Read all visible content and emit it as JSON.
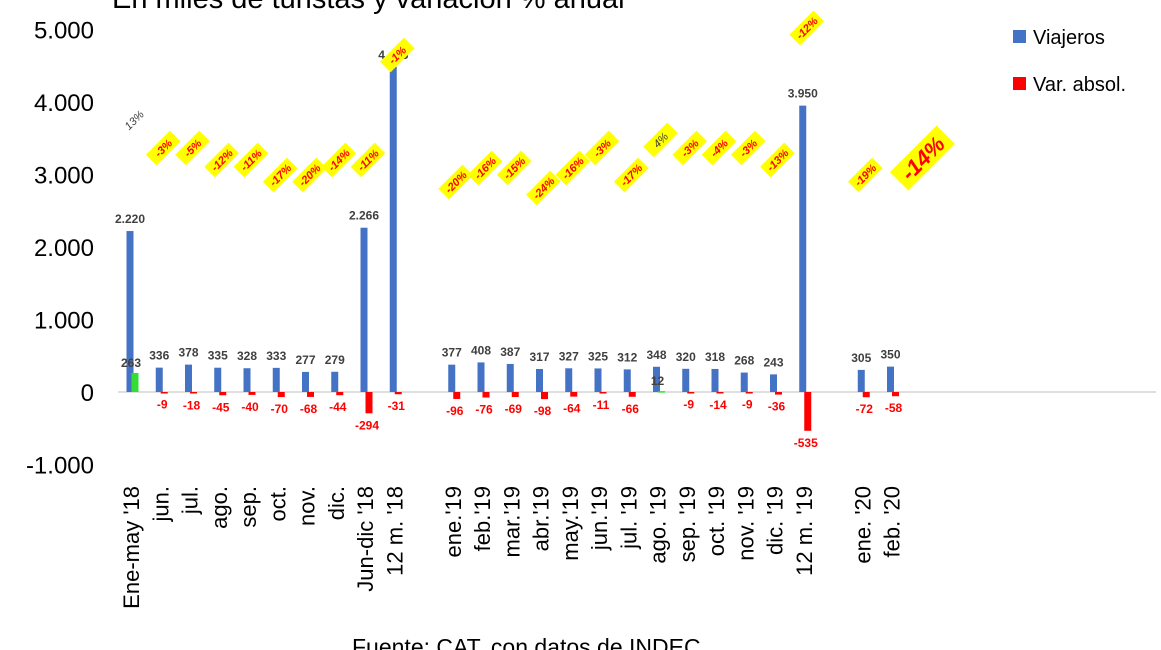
{
  "chart_data": {
    "type": "bar",
    "title": "En miles de turistas y variación % anual",
    "source": "Fuente: CAT, con datos de INDEC",
    "ylim": [
      -1000,
      5000
    ],
    "yticks": [
      "-1.000",
      "0",
      "1.000",
      "2.000",
      "3.000",
      "4.000",
      "5.000"
    ],
    "categories": [
      "Ene-may '18",
      "jun.",
      "jul.",
      "ago.",
      "sep.",
      "oct.",
      "nov.",
      "dic.",
      "Jun-dic '18",
      "12 m. '18",
      "",
      "ene.'19",
      "feb.'19",
      "mar.'19",
      "abr.'19",
      "may.'19",
      "jun.'19",
      "jul. '19",
      "ago. '19",
      "sep. '19",
      "oct. '19",
      "nov. '19",
      "dic. '19",
      "12 m. '19",
      "",
      "ene. '20",
      "feb. '20"
    ],
    "series": [
      {
        "name": "Viajeros",
        "color": "#4472C4",
        "values": [
          2220,
          336,
          378,
          335,
          328,
          333,
          277,
          279,
          2266,
          4485,
          null,
          377,
          408,
          387,
          317,
          327,
          325,
          312,
          348,
          320,
          318,
          268,
          243,
          3950,
          null,
          305,
          350
        ],
        "labels": [
          "2.220",
          "336",
          "378",
          "335",
          "328",
          "333",
          "277",
          "279",
          "2.266",
          "4.485",
          "",
          "377",
          "408",
          "387",
          "317",
          "327",
          "325",
          "312",
          "348",
          "320",
          "318",
          "268",
          "243",
          "3.950",
          "",
          "305",
          "350"
        ]
      },
      {
        "name": "Var. absol.",
        "color": "#FF0000",
        "positive_color": "#33DD33",
        "values": [
          263,
          -9,
          -18,
          -45,
          -40,
          -70,
          -68,
          -44,
          -294,
          -31,
          null,
          -96,
          -76,
          -69,
          -98,
          -64,
          -11,
          -66,
          12,
          -9,
          -14,
          -9,
          -36,
          -535,
          null,
          -72,
          -58
        ],
        "labels": [
          "263",
          "-9",
          "-18",
          "-45",
          "-40",
          "-70",
          "-68",
          "-44",
          "-294",
          "-31",
          "",
          "-96",
          "-76",
          "-69",
          "-98",
          "-64",
          "-11",
          "-66",
          "12",
          "-9",
          "-14",
          "-9",
          "-36",
          "-535",
          "",
          "-72",
          "-58"
        ]
      }
    ],
    "pct_labels": [
      "13%",
      "-3%",
      "-5%",
      "-12%",
      "-11%",
      "-17%",
      "-20%",
      "-14%",
      "-11%",
      "-1%",
      "",
      "-20%",
      "-16%",
      "-15%",
      "-24%",
      "-16%",
      "-3%",
      "-17%",
      "4%",
      "-3%",
      "-4%",
      "-3%",
      "-13%",
      "-12%",
      "",
      "-19%",
      "-14%"
    ],
    "pct_highlight_color": "#FFFF00",
    "legend_position": "top-right",
    "grid": false
  }
}
